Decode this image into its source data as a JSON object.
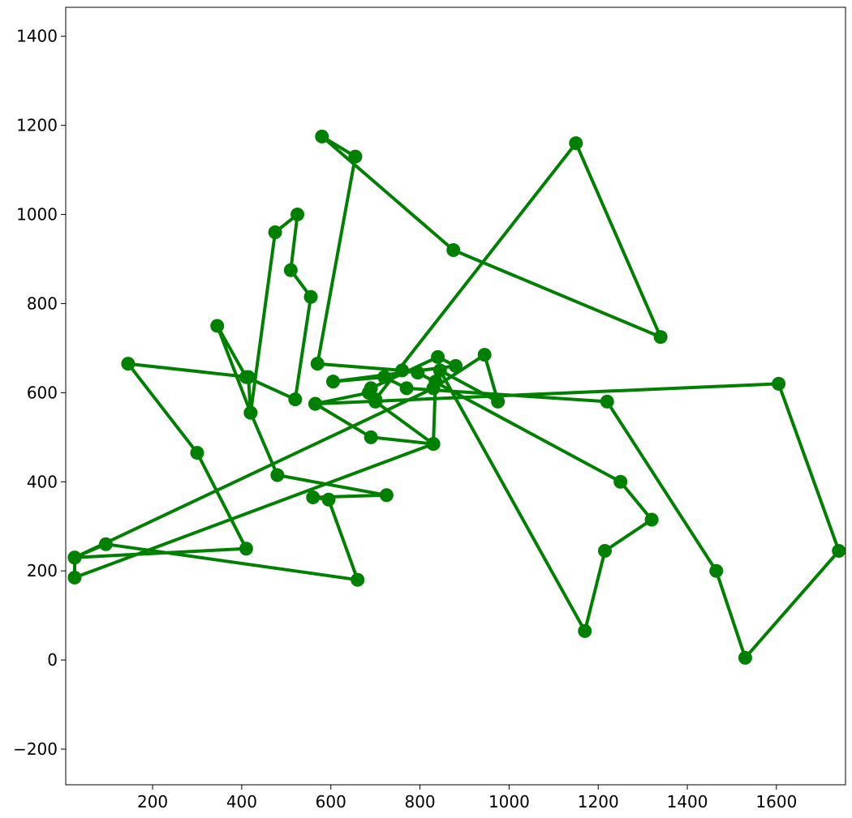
{
  "chart_data": {
    "type": "line",
    "title": "",
    "xlabel": "",
    "ylabel": "",
    "xlim": [
      5,
      1755
    ],
    "ylim": [
      -280,
      1465
    ],
    "grid": false,
    "color": "#008000",
    "marker": "circle",
    "x_ticks": [
      200,
      400,
      600,
      800,
      1000,
      1200,
      1400,
      1600
    ],
    "y_ticks": [
      -200,
      0,
      200,
      400,
      600,
      800,
      1000,
      1200,
      1400
    ],
    "x_tick_labels": [
      "200",
      "400",
      "600",
      "800",
      "1000",
      "1200",
      "1400",
      "1600"
    ],
    "y_tick_labels": [
      "−200",
      "0",
      "200",
      "400",
      "600",
      "800",
      "1000",
      "1200",
      "1400"
    ],
    "series": [
      {
        "x": [
          565,
          1605,
          1740,
          1530,
          1465,
          1220,
          770,
          720,
          605,
          880,
          840,
          690,
          700,
          830,
          25,
          25,
          95,
          660,
          595,
          560,
          725,
          480,
          420,
          345,
          410,
          520,
          555,
          510,
          525,
          475,
          420,
          415,
          145,
          300,
          410,
          25,
          830,
          945,
          975,
          845,
          1170,
          1215,
          1320,
          1250,
          795,
          760,
          570,
          655,
          580,
          875,
          1340,
          1150,
          700,
          685,
          565,
          690,
          830,
          835
        ],
        "y": [
          575,
          620,
          245,
          5,
          200,
          580,
          610,
          635,
          625,
          660,
          680,
          610,
          580,
          485,
          185,
          230,
          260,
          180,
          360,
          365,
          370,
          415,
          555,
          750,
          635,
          585,
          815,
          875,
          1000,
          960,
          555,
          635,
          665,
          465,
          250,
          230,
          610,
          685,
          580,
          650,
          65,
          245,
          315,
          400,
          645,
          650,
          665,
          1130,
          1175,
          920,
          725,
          1160,
          585,
          600,
          575,
          500,
          485,
          625
        ]
      }
    ]
  }
}
